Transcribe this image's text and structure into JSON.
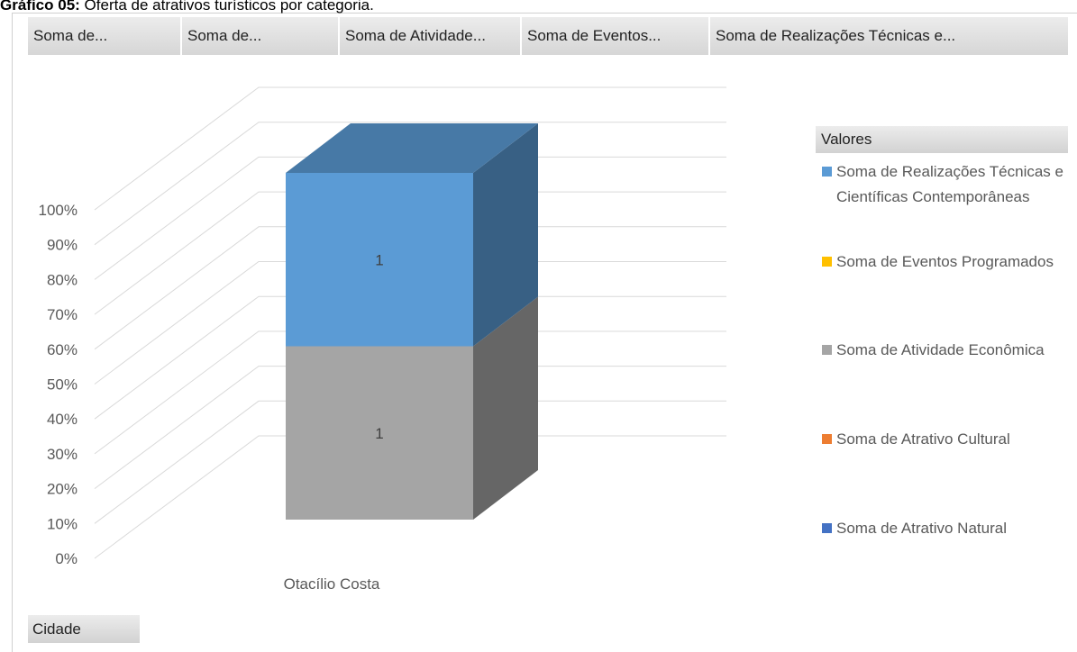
{
  "chart_data": {
    "type": "bar3d_stacked_percent",
    "title_label": "Gráfico 05:",
    "title": "Oferta de atrativos turísticos por categoria.",
    "field_buttons": [
      "Soma de...",
      "Soma de...",
      "Soma de Atividade...",
      "Soma de Eventos...",
      "Soma de Realizações Técnicas e..."
    ],
    "legend_title": "Valores",
    "filter_button": "Cidade",
    "categories": [
      "Otacílio Costa"
    ],
    "series": [
      {
        "name": "Soma de Atrativo Natural",
        "color": "#4472c4",
        "values": [
          0
        ]
      },
      {
        "name": "Soma de Atrativo Cultural",
        "color": "#ed7d31",
        "values": [
          0
        ]
      },
      {
        "name": "Soma de Atividade Econômica",
        "color": "#a5a5a5",
        "values": [
          1
        ]
      },
      {
        "name": "Soma de Eventos Programados",
        "color": "#ffc000",
        "values": [
          0
        ]
      },
      {
        "name": "Soma de Realizações Técnicas e Científicas Contemporâneas",
        "color": "#5b9bd5",
        "values": [
          1
        ]
      }
    ],
    "ylim": [
      0,
      100
    ],
    "yticks": [
      {
        "value": 0,
        "label": "0%"
      },
      {
        "value": 10,
        "label": "10%"
      },
      {
        "value": 20,
        "label": "20%"
      },
      {
        "value": 30,
        "label": "30%"
      },
      {
        "value": 40,
        "label": "40%"
      },
      {
        "value": 50,
        "label": "50%"
      },
      {
        "value": 60,
        "label": "60%"
      },
      {
        "value": 70,
        "label": "70%"
      },
      {
        "value": 80,
        "label": "80%"
      },
      {
        "value": 90,
        "label": "90%"
      },
      {
        "value": 100,
        "label": "100%"
      }
    ],
    "grid": true,
    "legend": "right"
  }
}
